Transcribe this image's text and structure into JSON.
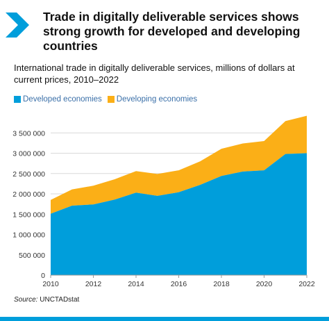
{
  "header": {
    "title": "Trade in digitally deliverable services shows strong growth for developed and developing countries"
  },
  "chart_data": {
    "type": "area",
    "stacked": true,
    "subtitle": "International trade in digitally deliverable services, millions of dollars at current prices, 2010–2022",
    "x": [
      2010,
      2011,
      2012,
      2013,
      2014,
      2015,
      2016,
      2017,
      2018,
      2019,
      2020,
      2021,
      2022
    ],
    "x_ticks": [
      "2010",
      "2012",
      "2014",
      "2016",
      "2018",
      "2020",
      "2022"
    ],
    "y_ticks": [
      "0",
      "500 000",
      "1 000 000",
      "1 500 000",
      "2 000 000",
      "2 500 000",
      "3 000 000",
      "3 500 000"
    ],
    "ylim": [
      0,
      4000000
    ],
    "series": [
      {
        "name": "Developed economies",
        "color": "#009edb",
        "values": [
          1510000,
          1710000,
          1740000,
          1860000,
          2030000,
          1950000,
          2040000,
          2220000,
          2440000,
          2550000,
          2580000,
          2980000,
          3000000
        ]
      },
      {
        "name": "Developing economies",
        "color": "#fbaf17",
        "values": [
          340000,
          400000,
          460000,
          500000,
          530000,
          540000,
          540000,
          580000,
          670000,
          690000,
          720000,
          810000,
          920000
        ]
      }
    ],
    "legend_position": "top-left",
    "grid": true,
    "source_label": "Source:",
    "source_text": "UNCTADstat"
  }
}
